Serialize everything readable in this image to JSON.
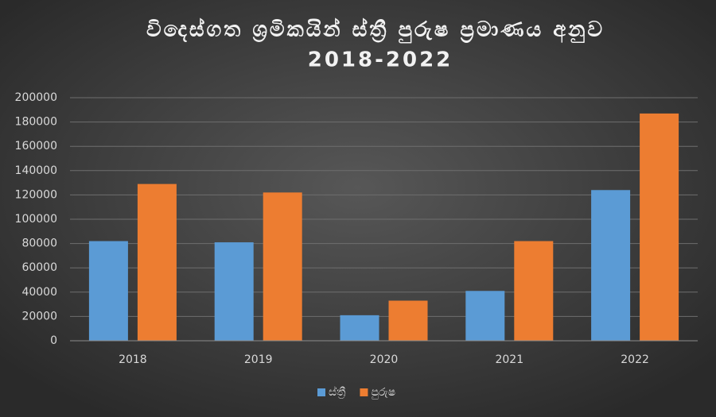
{
  "chart_data": {
    "type": "bar",
    "title": [
      "විදෙස්ගත ශ්‍රමිකයින් ස්ත්‍රී පුරුෂ ප්‍රමාණය අනුව",
      "2018-2022"
    ],
    "categories": [
      "2018",
      "2019",
      "2020",
      "2021",
      "2022"
    ],
    "series": [
      {
        "name": "ස්ත්‍රී",
        "color": "#5b9bd5",
        "values": [
          82000,
          81000,
          21000,
          41000,
          124000
        ]
      },
      {
        "name": "පුරුෂ",
        "color": "#ed7d31",
        "values": [
          129000,
          122000,
          33000,
          82000,
          187000
        ]
      }
    ],
    "ylim": [
      0,
      200000
    ],
    "yticks": [
      0,
      20000,
      40000,
      60000,
      80000,
      100000,
      120000,
      140000,
      160000,
      180000,
      200000
    ],
    "grid": true,
    "legend": "bottom"
  }
}
